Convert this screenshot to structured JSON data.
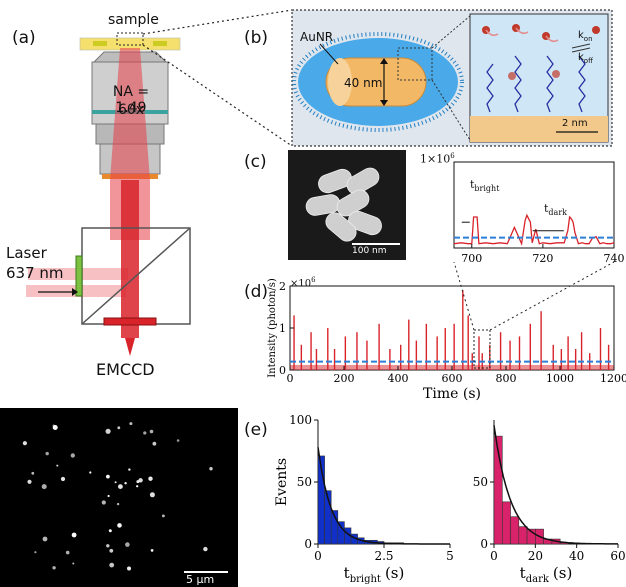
{
  "panel_a": {
    "label": "(a)",
    "sample_label": "sample",
    "objective": {
      "na": "NA = 1.49",
      "mag": "60x"
    },
    "laser": {
      "line1": "Laser",
      "line2": "637 nm"
    },
    "detector": "EMCCD",
    "colors": {
      "beam": "#e8404a",
      "filter_green": "#7cc142",
      "filter_red": "#d8232a",
      "sample_slide": "#f5e06e"
    }
  },
  "panel_b": {
    "label": "(b)",
    "particle": "AuNR",
    "diameter": "40 nm",
    "k_on": "k",
    "k_on_sub": "on",
    "k_off": "k",
    "k_off_sub": "off",
    "scale": "2 nm",
    "colors": {
      "gold": "#f2b866",
      "ligand": "#2f9be0",
      "inset_bg": "#cfe6f6"
    }
  },
  "panel_c": {
    "label": "(c)",
    "sem_scale": "100 nm",
    "trace_ymax": "1×10",
    "trace_ymax_exp": "6",
    "t_bright": "t",
    "t_bright_sub": "bright",
    "t_dark": "t",
    "t_dark_sub": "dark"
  },
  "panel_d": {
    "label": "(d)",
    "scale_label": "×10",
    "scale_exp": "6",
    "image_scale": "5 µm"
  },
  "panel_e": {
    "label": "(e)"
  },
  "chart_data": [
    {
      "type": "line",
      "id": "zoom-trace",
      "x_ticks": [
        "700",
        "720",
        "740"
      ],
      "xlim": [
        695,
        740
      ],
      "ylim": [
        0,
        1
      ],
      "threshold": 0.12,
      "series": [
        {
          "x": [
            695,
            697,
            699,
            700,
            700.5,
            701.5,
            702,
            704,
            706,
            708,
            710,
            712,
            714,
            715,
            715.5,
            716,
            716.5,
            717,
            718,
            719,
            720,
            722,
            724,
            726,
            727,
            727.5,
            728,
            728.5,
            729,
            730,
            731,
            732,
            733,
            734,
            735,
            736,
            737,
            738,
            739,
            740
          ],
          "values": [
            0.05,
            0.06,
            0.05,
            0.05,
            0.36,
            0.36,
            0.05,
            0.06,
            0.05,
            0.06,
            0.05,
            0.24,
            0.05,
            0.32,
            0.38,
            0.34,
            0.3,
            0.06,
            0.22,
            0.05,
            0.06,
            0.05,
            0.06,
            0.06,
            0.2,
            0.36,
            0.34,
            0.3,
            0.18,
            0.05,
            0.06,
            0.05,
            0.05,
            0.12,
            0.13,
            0.05,
            0.06,
            0.05,
            0.05,
            0.06
          ]
        }
      ]
    },
    {
      "type": "line",
      "id": "full-trace",
      "xlabel": "Time (s)",
      "ylabel": "Intensity (photon/s)",
      "x_ticks": [
        "0",
        "200",
        "400",
        "600",
        "800",
        "1000",
        "1200"
      ],
      "y_ticks": [
        "0",
        "1",
        "2"
      ],
      "xlim": [
        0,
        1200
      ],
      "ylim": [
        0,
        2
      ],
      "threshold": 0.2,
      "series": [
        {
          "x": [
            15,
            42,
            78,
            98,
            140,
            165,
            205,
            248,
            285,
            330,
            370,
            410,
            440,
            468,
            505,
            545,
            575,
            608,
            640,
            660,
            675,
            700,
            712,
            740,
            780,
            815,
            850,
            890,
            930,
            975,
            1005,
            1030,
            1058,
            1080,
            1110,
            1150,
            1180
          ],
          "values": [
            1.3,
            0.6,
            0.9,
            0.5,
            1.0,
            0.5,
            0.8,
            0.9,
            0.7,
            1.1,
            0.5,
            0.6,
            1.2,
            0.7,
            1.1,
            0.8,
            1.0,
            1.1,
            1.9,
            1.3,
            0.4,
            0.8,
            0.4,
            0.6,
            0.9,
            0.7,
            0.8,
            1.1,
            1.4,
            0.6,
            0.5,
            0.8,
            0.5,
            0.9,
            0.4,
            1.0,
            0.6
          ]
        }
      ]
    },
    {
      "type": "bar",
      "id": "hist-bright",
      "xlabel": "t",
      "xlabel_sub": "bright",
      "xlabel_unit": "(s)",
      "ylabel": "Events",
      "x_ticks": [
        "0",
        "2.5",
        "5"
      ],
      "y_ticks": [
        "0",
        "50",
        "100"
      ],
      "xlim": [
        0,
        5
      ],
      "ylim": [
        0,
        100
      ],
      "bin_width": 0.25,
      "values": [
        71,
        43,
        27,
        18,
        13,
        8,
        5,
        3,
        3,
        2,
        1,
        1,
        1,
        0,
        0,
        0,
        0,
        0,
        0,
        0
      ],
      "fit": "exponential"
    },
    {
      "type": "bar",
      "id": "hist-dark",
      "xlabel": "t",
      "xlabel_sub": "dark",
      "xlabel_unit": "(s)",
      "ylabel": "",
      "x_ticks": [
        "0",
        "20",
        "40",
        "60"
      ],
      "y_ticks": [
        "0",
        "50"
      ],
      "xlim": [
        0,
        60
      ],
      "ylim": [
        0,
        100
      ],
      "bin_width": 4,
      "values": [
        87,
        34,
        22,
        14,
        12,
        12,
        4,
        4,
        1,
        0,
        0,
        0,
        0,
        0,
        0
      ],
      "fit": "exponential"
    }
  ]
}
